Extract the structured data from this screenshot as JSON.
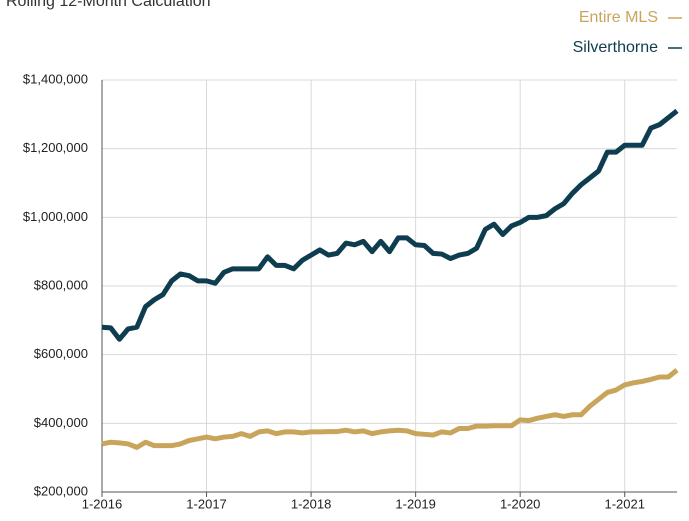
{
  "chart_data": {
    "type": "line",
    "title": "Rolling 12-Month Calculation",
    "categories": [
      "1-2016",
      null,
      null,
      null,
      null,
      null,
      null,
      null,
      null,
      null,
      null,
      null,
      "1-2017",
      null,
      null,
      null,
      null,
      null,
      null,
      null,
      null,
      null,
      null,
      null,
      "1-2018",
      null,
      null,
      null,
      null,
      null,
      null,
      null,
      null,
      null,
      null,
      null,
      "1-2019",
      null,
      null,
      null,
      null,
      null,
      null,
      null,
      null,
      null,
      null,
      null,
      "1-2020",
      null,
      null,
      null,
      null,
      null,
      null,
      null,
      null,
      null,
      null,
      null,
      "1-2021",
      null,
      null,
      null,
      null,
      null,
      null
    ],
    "series": [
      {
        "name": "Entire MLS",
        "color": "#c9a55c",
        "values": [
          340000,
          345000,
          343000,
          340000,
          330000,
          345000,
          335000,
          335000,
          335000,
          340000,
          350000,
          355000,
          360000,
          355000,
          360000,
          362000,
          370000,
          362000,
          375000,
          378000,
          370000,
          375000,
          375000,
          372000,
          375000,
          375000,
          376000,
          376000,
          380000,
          375000,
          378000,
          370000,
          375000,
          378000,
          380000,
          378000,
          370000,
          368000,
          366000,
          375000,
          372000,
          385000,
          385000,
          392000,
          392000,
          393000,
          393000,
          393000,
          410000,
          408000,
          415000,
          420000,
          425000,
          420000,
          425000,
          425000,
          450000,
          470000,
          490000,
          497000,
          512000,
          518000,
          522000,
          528000,
          535000,
          535000,
          555000
        ]
      },
      {
        "name": "Silverthorne",
        "color": "#0d3d4f",
        "values": [
          680000,
          678000,
          645000,
          675000,
          680000,
          740000,
          760000,
          775000,
          815000,
          835000,
          830000,
          815000,
          815000,
          808000,
          840000,
          850000,
          850000,
          850000,
          850000,
          885000,
          860000,
          860000,
          850000,
          875000,
          890000,
          905000,
          890000,
          895000,
          925000,
          920000,
          930000,
          900000,
          930000,
          900000,
          940000,
          940000,
          920000,
          918000,
          895000,
          893000,
          880000,
          890000,
          895000,
          910000,
          965000,
          980000,
          950000,
          975000,
          985000,
          1000000,
          1000000,
          1005000,
          1025000,
          1040000,
          1070000,
          1095000,
          1115000,
          1135000,
          1190000,
          1190000,
          1210000,
          1210000,
          1210000,
          1260000,
          1270000,
          1290000,
          1310000
        ]
      }
    ],
    "ylim": [
      200000,
      1400000
    ],
    "yticks": [
      {
        "value": 200000,
        "label": "$200,000"
      },
      {
        "value": 400000,
        "label": "$400,000"
      },
      {
        "value": 600000,
        "label": "$600,000"
      },
      {
        "value": 800000,
        "label": "$800,000"
      },
      {
        "value": 1000000,
        "label": "$1,000,000"
      },
      {
        "value": 1200000,
        "label": "$1,200,000"
      },
      {
        "value": 1400000,
        "label": "$1,400,000"
      }
    ],
    "grid": true
  }
}
